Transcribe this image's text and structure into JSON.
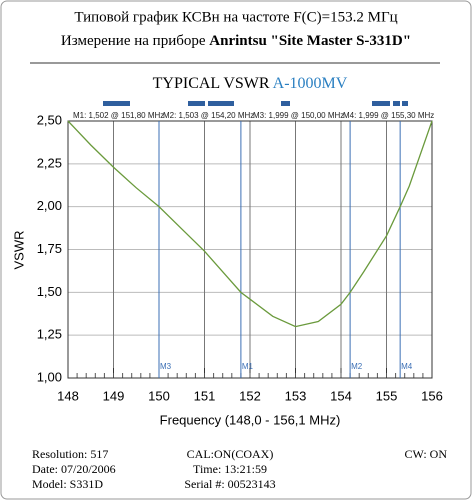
{
  "header": {
    "line1": "Типовой график КСВн на частоте F(C)=153.2 МГц",
    "line2_prefix": "Измерение на приборе",
    "line2_bold": "Anrintsu \"Site Master S-331D\""
  },
  "chart_data": {
    "type": "line",
    "title": "TYPICAL VSWR",
    "title_model": "A-1000MV",
    "title_model_color": "#2a7fc1",
    "xlabel": "Frequency (148,0 - 156,1 MHz)",
    "ylabel": "VSWR",
    "x": [
      148,
      148.5,
      149,
      149.5,
      150,
      150.5,
      151,
      151.5,
      151.8,
      152,
      152.5,
      153,
      153.5,
      154,
      154.2,
      154.5,
      155,
      155.3,
      155.5,
      156
    ],
    "series": [
      {
        "color": "#6a9a3c",
        "values": [
          2.5,
          2.36,
          2.23,
          2.11,
          2.0,
          1.87,
          1.74,
          1.59,
          1.5,
          1.46,
          1.36,
          1.3,
          1.33,
          1.43,
          1.5,
          1.62,
          1.83,
          2.0,
          2.12,
          2.5
        ]
      }
    ],
    "xlim": [
      148,
      156
    ],
    "xticks": [
      148,
      149,
      150,
      151,
      152,
      153,
      154,
      155,
      156
    ],
    "ylim": [
      1.0,
      2.5
    ],
    "yticks": [
      {
        "value": 1.0,
        "label": "1,00"
      },
      {
        "value": 1.25,
        "label": "1,25"
      },
      {
        "value": 1.5,
        "label": "1,50"
      },
      {
        "value": 1.75,
        "label": "1,75"
      },
      {
        "value": 2.0,
        "label": "2,00"
      },
      {
        "value": 2.25,
        "label": "2,25"
      },
      {
        "value": 2.5,
        "label": "2,50"
      }
    ],
    "grid": true,
    "marker_color": "#3b6fb5",
    "markers": [
      {
        "name": "M1",
        "x": 151.8,
        "value": 1.502,
        "label": "M1: 1,502 @ 151,80 MHz"
      },
      {
        "name": "M2",
        "x": 154.2,
        "value": 1.503,
        "label": "M2: 1,503 @ 154,20 MHz"
      },
      {
        "name": "M3",
        "x": 150.0,
        "value": 1.999,
        "label": "M3: 1,999 @ 150,00 MHz"
      },
      {
        "name": "M4",
        "x": 155.3,
        "value": 1.999,
        "label": "M4: 1,999 @ 155,30 MHz"
      }
    ]
  },
  "footer": {
    "resolution": "Resolution:  517",
    "date": "Date: 07/20/2006",
    "model": "Model: S331D",
    "cal": "CAL:ON(COAX)",
    "time": "Time: 13:21:59",
    "serial": "Serial #: 00523143",
    "cw": "CW: ON"
  }
}
